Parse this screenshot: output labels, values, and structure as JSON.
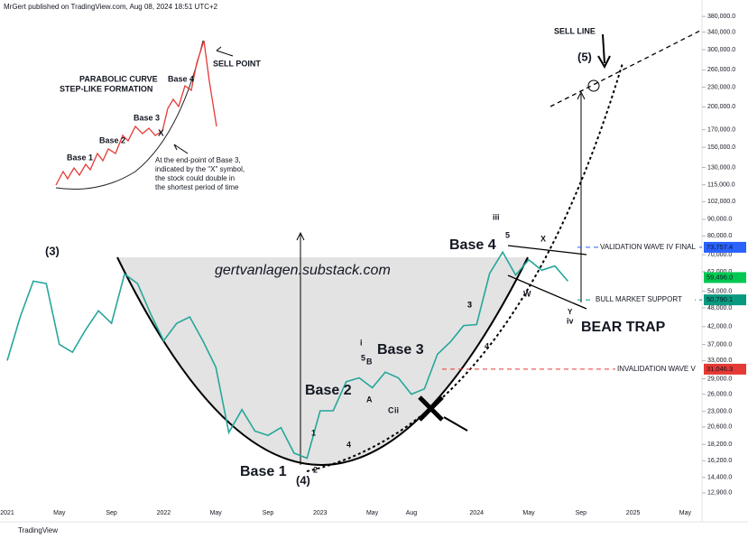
{
  "chart_data": {
    "type": "line",
    "log_scale": true,
    "header": "MrGert published on TradingView.com, Aug 08, 2024 18:51 UTC+2",
    "footer": "TradingView",
    "categories": [
      "2021",
      null,
      null,
      null,
      "May",
      null,
      null,
      null,
      "Sep",
      null,
      null,
      null,
      "2022",
      null,
      null,
      null,
      "May",
      null,
      null,
      null,
      "Sep",
      null,
      null,
      null,
      "2023",
      null,
      null,
      null,
      "May",
      null,
      null,
      "Aug",
      null,
      null,
      null,
      null,
      "2024",
      null,
      null,
      null,
      "May",
      null,
      null,
      null,
      "Sep",
      null,
      null,
      null,
      "2025",
      null,
      null,
      null,
      "May",
      null
    ],
    "series": [
      {
        "color": "#26a69a",
        "values": [
          33000,
          45000,
          58000,
          57000,
          37000,
          35000,
          41000,
          47000,
          43000,
          61000,
          57000,
          46000,
          38000,
          43000,
          45000,
          38000,
          31500,
          19800,
          23300,
          20000,
          19400,
          20500,
          17100,
          16500,
          23100,
          23100,
          28400,
          29200,
          27200,
          30400,
          29200,
          26000,
          27000,
          34500,
          37700,
          42300,
          42600,
          61200,
          71300,
          60600,
          67500,
          62700,
          64600,
          58000,
          null,
          null,
          null,
          null,
          null,
          null,
          null,
          null,
          null,
          null
        ]
      }
    ],
    "ylim": [
      10500,
      427000
    ],
    "yticks": [
      {
        "value": 12900,
        "label": "12,900.0"
      },
      {
        "value": 14400,
        "label": "14,400.0"
      },
      {
        "value": 16200,
        "label": "16,200.0"
      },
      {
        "value": 18200,
        "label": "18,200.0"
      },
      {
        "value": 20600,
        "label": "20,600.0"
      },
      {
        "value": 23000,
        "label": "23,000.0"
      },
      {
        "value": 26000,
        "label": "26,000.0"
      },
      {
        "value": 29000,
        "label": "29,000.0"
      },
      {
        "value": 33000,
        "label": "33,000.0"
      },
      {
        "value": 37000,
        "label": "37,000.0"
      },
      {
        "value": 42000,
        "label": "42,000.0"
      },
      {
        "value": 48000,
        "label": "48,000.0"
      },
      {
        "value": 54000,
        "label": "54,000.0"
      },
      {
        "value": 62000,
        "label": "62,000.0"
      },
      {
        "value": 70000,
        "label": "70,000.0"
      },
      {
        "value": 80000,
        "label": "80,000.0"
      },
      {
        "value": 90000,
        "label": "90,000.0"
      },
      {
        "value": 102000,
        "label": "102,000.0"
      },
      {
        "value": 115000,
        "label": "115,000.0"
      },
      {
        "value": 130000,
        "label": "130,000.0"
      },
      {
        "value": 150000,
        "label": "150,000.0"
      },
      {
        "value": 170000,
        "label": "170,000.0"
      },
      {
        "value": 200000,
        "label": "200,000.0"
      },
      {
        "value": 230000,
        "label": "230,000.0"
      },
      {
        "value": 260000,
        "label": "260,000.0"
      },
      {
        "value": 300000,
        "label": "300,000.0"
      },
      {
        "value": 340000,
        "label": "340,000.0"
      },
      {
        "value": 380000,
        "label": "380,000.0"
      }
    ],
    "levels": [
      {
        "name": "VALIDATION WAVE IV FINAL",
        "value": 73757.4,
        "label": "73,757.4",
        "color": "#2962ff"
      },
      {
        "value": 59496.0,
        "label": "59,496.0",
        "color": "#00c853"
      },
      {
        "name": "BULL MARKET SUPPORT",
        "value": 50790.1,
        "label": "50,790.1",
        "color": "#089981"
      },
      {
        "name": "INVALIDATION WAVE V",
        "value": 31046.3,
        "label": "31,046.3",
        "color": "#e53935"
      }
    ],
    "annotations": [
      "gertvanlagen.substack.com",
      "Base 1",
      "Base 2",
      "Base 3",
      "Base 4",
      "(3)",
      "(4)",
      "(5)",
      "SELL LINE",
      "BEAR TRAP",
      "PARABOLIC CURVE",
      "STEP-LIKE FORMATION",
      "SELL POINT",
      "Base 1",
      "Base 2",
      "Base 3",
      "Base 4",
      "X",
      "At the end-point of Base 3,",
      "indicated by the \"X\" symbol,",
      "the stock could double in",
      "the shortest period of time",
      "i",
      "ii",
      "iii",
      "iv",
      "1",
      "2",
      "3",
      "4",
      "5",
      "5",
      "3",
      "4",
      "A",
      "B",
      "C",
      "W",
      "X",
      "Y"
    ]
  }
}
